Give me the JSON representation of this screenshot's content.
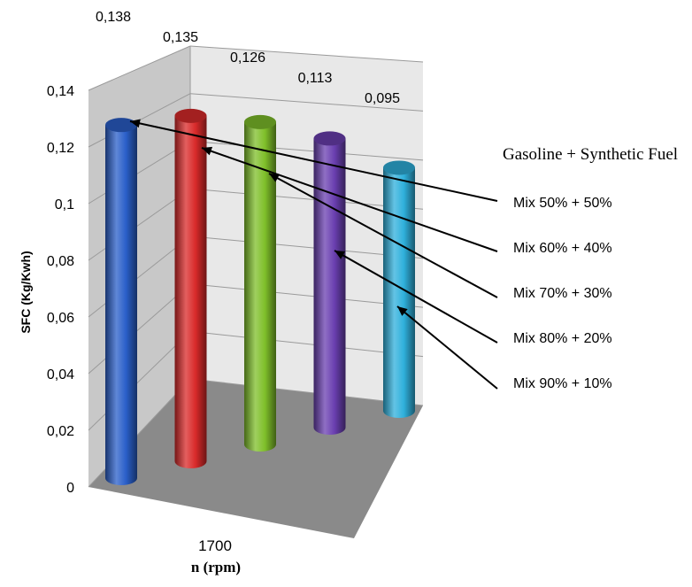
{
  "chart_data": {
    "type": "bar",
    "style": "3d-cylinder",
    "categories": [
      "1700"
    ],
    "xlabel": "n (rpm)",
    "ylabel": "SFC (Kg/Kwh)",
    "ylim": [
      0,
      0.14
    ],
    "yticks": [
      "0",
      "0,02",
      "0,04",
      "0,06",
      "0,08",
      "0,1",
      "0,12",
      "0,14"
    ],
    "grid": true,
    "legend_title": "Gasoline + Synthetic Fuel",
    "legend_placement": "right",
    "series": [
      {
        "name": "Mix 50% + 50%",
        "value": 0.138,
        "label": "0,138",
        "color": "#2a5fc9"
      },
      {
        "name": "Mix 60% + 40%",
        "value": 0.135,
        "label": "0,135",
        "color": "#d92a2a"
      },
      {
        "name": "Mix 70% + 30%",
        "value": 0.126,
        "label": "0,126",
        "color": "#7fbf2a"
      },
      {
        "name": "Mix 80% + 20%",
        "value": 0.113,
        "label": "0,113",
        "color": "#6a3fb0"
      },
      {
        "name": "Mix 90% + 10%",
        "value": 0.095,
        "label": "0,095",
        "color": "#2fb0dc"
      }
    ]
  }
}
